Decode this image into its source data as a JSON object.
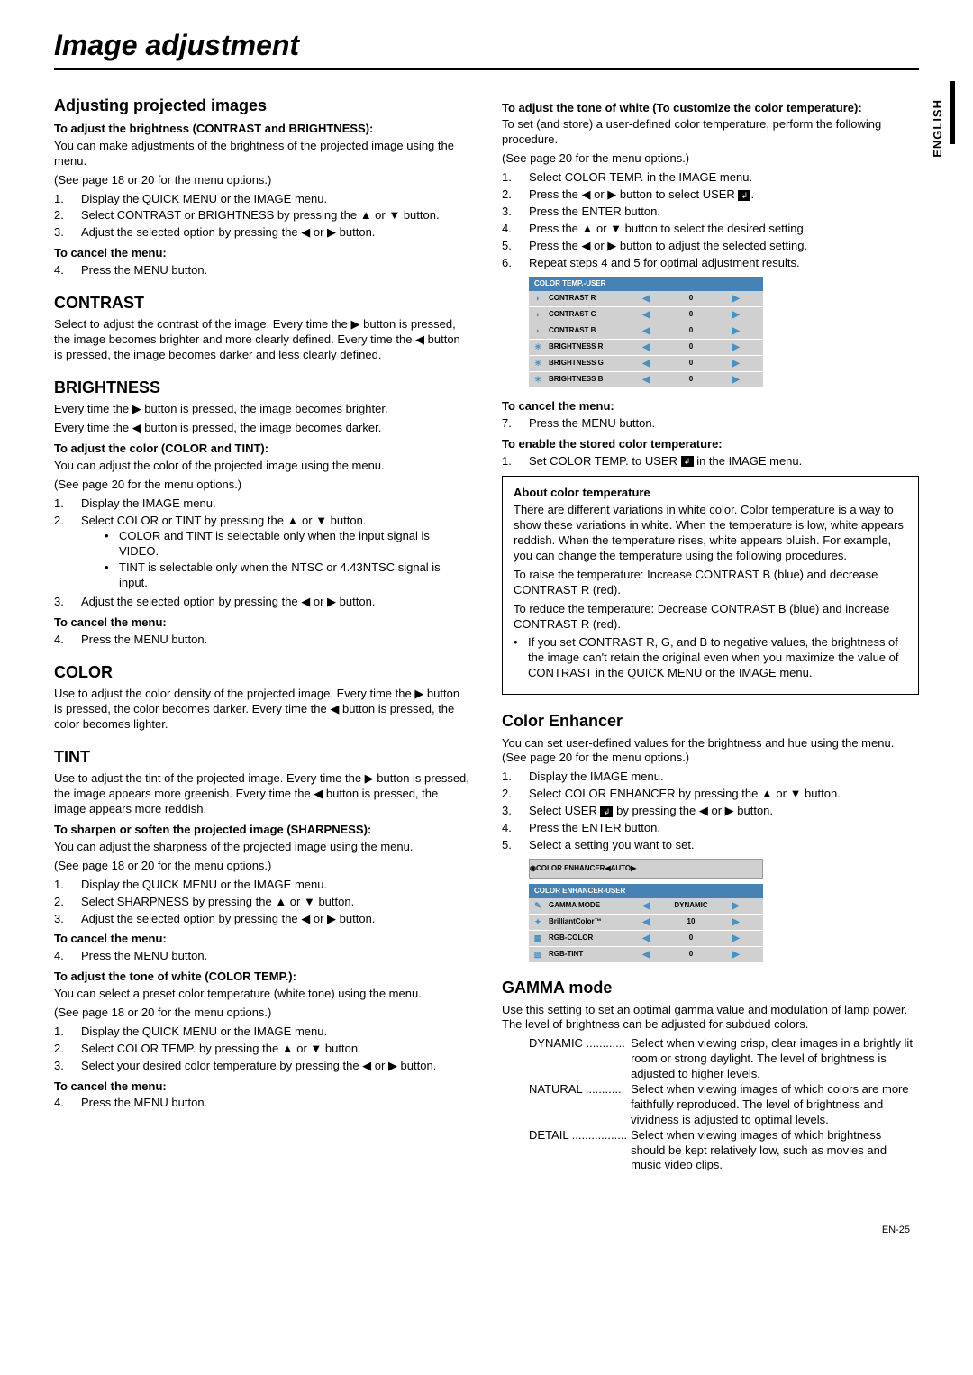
{
  "page": {
    "title": "Image adjustment",
    "lang": "ENGLISH",
    "pagenum": "EN-25"
  },
  "left": {
    "adjusting_h": "Adjusting projected images",
    "brightness_h3": "To adjust the brightness (CONTRAST and BRIGHTNESS):",
    "brightness_p1": "You can make adjustments of the brightness of the projected image using the menu.",
    "brightness_p2": "(See page 18 or 20 for the menu options.)",
    "brightness_l1": "Display the QUICK MENU or the IMAGE menu.",
    "brightness_l2": "Select CONTRAST or BRIGHTNESS by pressing the ▲ or ▼ button.",
    "brightness_l3": "Adjust the selected option by pressing the ◀ or ▶ button.",
    "cancel_h": "To cancel the menu:",
    "cancel_l4": "Press the MENU button.",
    "contrast_h": "CONTRAST",
    "contrast_p": "Select to adjust the contrast of the image. Every time the ▶ button is pressed, the image becomes brighter and more clearly defined. Every time the ◀ button is pressed, the image becomes darker and less clearly defined.",
    "bright_h": "BRIGHTNESS",
    "bright_p1": "Every time the ▶ button is pressed, the image becomes brighter.",
    "bright_p2": "Every time the ◀ button is pressed, the image becomes darker.",
    "color_h3": "To adjust the color (COLOR and TINT):",
    "color_p1": "You can adjust the color of the projected image using the menu.",
    "color_p2": "(See page 20 for the menu options.)",
    "color_l1": "Display the IMAGE menu.",
    "color_l2": "Select COLOR or TINT by pressing the ▲ or ▼ button.",
    "color_b1": "COLOR and TINT is selectable only when the input signal is VIDEO.",
    "color_b2": "TINT is selectable only when the NTSC or 4.43NTSC signal is input.",
    "color_l3": "Adjust the selected option by pressing the ◀ or ▶ button.",
    "color_h": "COLOR",
    "color_body": "Use to adjust the color density of the projected image. Every time the ▶ button is pressed, the color becomes darker. Every time the ◀ button is pressed, the color becomes lighter.",
    "tint_h": "TINT",
    "tint_body": "Use to adjust the tint of the projected image. Every time the ▶ button is pressed, the image appears more greenish. Every time the ◀ button is pressed, the image appears more reddish.",
    "sharp_h3": "To sharpen or soften the projected image (SHARPNESS):",
    "sharp_p1": "You can adjust the sharpness of the projected image using the menu.",
    "sharp_p2": "(See page 18 or 20 for the menu options.)",
    "sharp_l1": "Display the QUICK MENU or the IMAGE menu.",
    "sharp_l2": "Select SHARPNESS by pressing the ▲ or ▼ button.",
    "sharp_l3": "Adjust the selected option by pressing the ◀ or ▶ button.",
    "ct_h3": "To adjust the tone of white (COLOR TEMP.):",
    "ct_p1": "You can select a preset color temperature (white tone) using the menu.",
    "ct_p2": "(See page 18 or 20 for the menu options.)",
    "ct_l1": "Display the QUICK MENU or the IMAGE menu.",
    "ct_l2": "Select COLOR TEMP. by pressing the ▲ or ▼ button.",
    "ct_l3": "Select your desired color temperature by pressing the ◀ or ▶ button."
  },
  "right": {
    "ctu_h3": "To adjust the tone of white (To customize the color temperature):",
    "ctu_p1": "To set (and store) a user-defined color temperature, perform the following procedure.",
    "ctu_p2": "(See page 20 for the menu options.)",
    "ctu_l1": "Select COLOR TEMP. in the IMAGE menu.",
    "ctu_l2a": "Press the ◀ or ▶ button to select USER ",
    "ctu_l2b": ".",
    "ctu_l3": "Press the ENTER button.",
    "ctu_l4": "Press the ▲ or ▼ button to select the desired setting.",
    "ctu_l5": "Press the ◀ or ▶ button to adjust the selected setting.",
    "ctu_l6": "Repeat steps 4 and 5 for optimal adjustment results.",
    "ct_table_h": "COLOR TEMP.-USER",
    "ct_rows": [
      {
        "label": "CONTRAST R",
        "val": "0",
        "icon": "◗"
      },
      {
        "label": "CONTRAST G",
        "val": "0",
        "icon": "◗"
      },
      {
        "label": "CONTRAST B",
        "val": "0",
        "icon": "◗"
      },
      {
        "label": "BRIGHTNESS R",
        "val": "0",
        "icon": "☀"
      },
      {
        "label": "BRIGHTNESS G",
        "val": "0",
        "icon": "☀"
      },
      {
        "label": "BRIGHTNESS B",
        "val": "0",
        "icon": "☀"
      }
    ],
    "cancel7": "Press the MENU button.",
    "enable_h": "To enable the stored color temperature:",
    "enable_l1a": "Set COLOR TEMP. to USER ",
    "enable_l1b": " in the IMAGE menu.",
    "about_h": "About color temperature",
    "about_p1": "There are different variations in white color. Color temperature is a way to show these variations in white. When the temperature is low, white appears reddish. When the temperature rises, white appears bluish. For example, you can change the temperature using the following procedures.",
    "about_p2": "To raise the temperature: Increase CONTRAST B (blue) and decrease CONTRAST R (red).",
    "about_p3": "To reduce the temperature: Decrease CONTRAST B (blue) and increase CONTRAST R (red).",
    "about_b1": "If you set CONTRAST R, G, and B to negative values, the brightness of the image can't retain the original even when you maximize the value of CONTRAST in the QUICK MENU or the IMAGE menu.",
    "ce_h": "Color Enhancer",
    "ce_p1": "You can set user-defined values for the brightness and hue using the menu. (See page 20 for the menu options.)",
    "ce_l1": "Display the IMAGE menu.",
    "ce_l2": "Select COLOR ENHANCER by pressing the ▲ or ▼ button.",
    "ce_l3a": "Select USER ",
    "ce_l3b": " by pressing the ◀ or ▶ button.",
    "ce_l4": "Press the ENTER button.",
    "ce_l5": "Select a setting you want to set.",
    "ce_row_label": "COLOR ENHANCER",
    "ce_row_val": "AUTO",
    "ceu_h": "COLOR ENHANCER-USER",
    "ceu_rows": [
      {
        "label": "GAMMA MODE",
        "val": "DYNAMIC",
        "icon": "✎"
      },
      {
        "label": "BrilliantColor™",
        "val": "10",
        "icon": "✦"
      },
      {
        "label": "RGB-COLOR",
        "val": "0",
        "icon": "▦"
      },
      {
        "label": "RGB-TINT",
        "val": "0",
        "icon": "▨"
      }
    ],
    "gamma_h": "GAMMA mode",
    "gamma_p": "Use this setting to set an optimal gamma value and modulation of lamp power. The level of brightness can be adjusted for subdued colors.",
    "g_dyn_t": "DYNAMIC ............",
    "g_dyn_d": "Select when viewing crisp, clear images in a brightly lit room or strong daylight. The level of brightness is adjusted to higher levels.",
    "g_nat_t": "NATURAL ............",
    "g_nat_d": "Select when viewing images of which colors are more faithfully reproduced. The level of brightness and vividness is adjusted to optimal levels.",
    "g_det_t": "DETAIL .................",
    "g_det_d": "Select when viewing images of which brightness should be kept relatively low, such as movies and music video clips."
  }
}
